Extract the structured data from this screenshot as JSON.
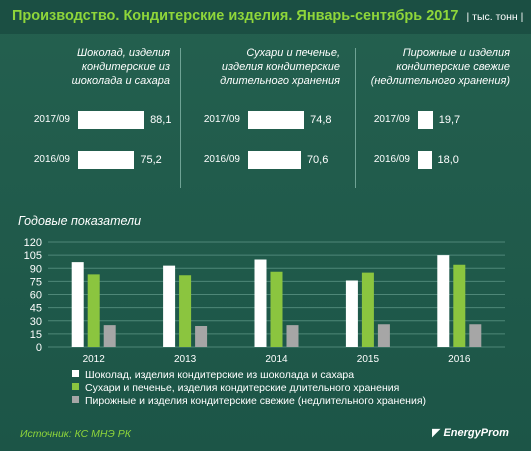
{
  "header": {
    "title": "Производство. Кондитерские изделия. Январь-сентябрь 2017",
    "unit": "| тыс. тонн |"
  },
  "panels": [
    {
      "title_lines": [
        "Шоколад, изделия",
        "кондитерские из",
        "шоколада и сахара"
      ],
      "rows": [
        {
          "label": "2017/09",
          "value": 88.1,
          "value_text": "88,1"
        },
        {
          "label": "2016/09",
          "value": 75.2,
          "value_text": "75,2"
        }
      ]
    },
    {
      "title_lines": [
        "Сухари и печенье,",
        "изделия кондитерские",
        "длительного хранения"
      ],
      "rows": [
        {
          "label": "2017/09",
          "value": 74.8,
          "value_text": "74,8"
        },
        {
          "label": "2016/09",
          "value": 70.6,
          "value_text": "70,6"
        }
      ]
    },
    {
      "title_lines": [
        "Пирожные и изделия",
        "кондитерские свежие",
        "(недлительного хранения)"
      ],
      "rows": [
        {
          "label": "2017/09",
          "value": 19.7,
          "value_text": "19,7"
        },
        {
          "label": "2016/09",
          "value": 18.0,
          "value_text": "18,0"
        }
      ]
    }
  ],
  "annual": {
    "section_title": "Годовые показатели"
  },
  "chart_data": {
    "type": "bar",
    "title": "Годовые показатели",
    "categories": [
      "2012",
      "2013",
      "2014",
      "2015",
      "2016"
    ],
    "series": [
      {
        "name": "Шоколад, изделия кондитерские из шоколада и сахара",
        "color": "#ffffff",
        "values": [
          97,
          93,
          100,
          76,
          105
        ]
      },
      {
        "name": "Сухари и печенье, изделия кондитерские длительного хранения",
        "color": "#8bc53f",
        "values": [
          83,
          82,
          86,
          85,
          94
        ]
      },
      {
        "name": "Пирожные и изделия кондитерские свежие (недлительного хранения)",
        "color": "#a6a6a6",
        "values": [
          25,
          24,
          25,
          26,
          26
        ]
      }
    ],
    "yticks": [
      "0",
      "15",
      "30",
      "45",
      "60",
      "75",
      "90",
      "105",
      "120"
    ],
    "ylim": [
      0,
      120
    ],
    "grid": true,
    "legend": "bottom"
  },
  "legend": {
    "items": [
      {
        "label": "Шоколад, изделия кондитерские из шоколада и сахара",
        "color": "#ffffff"
      },
      {
        "label": "Сухари и печенье, изделия кондитерские длительного хранения",
        "color": "#8bc53f"
      },
      {
        "label": "Пирожные и изделия кондитерские свежие (недлительного хранения)",
        "color": "#a6a6a6"
      }
    ]
  },
  "footer": {
    "source": "Источник: КС МНЭ РК",
    "logo": "EnergyProm",
    "logo_icon": "energyprom-logo-icon"
  }
}
